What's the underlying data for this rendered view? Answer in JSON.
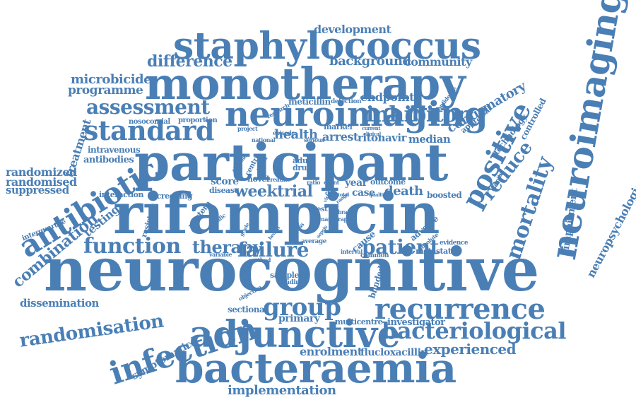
{
  "color": "#4a7fb5",
  "words": [
    {
      "text": "neurocognitive"
    },
    {
      "text": "rifampicin"
    },
    {
      "text": "participant"
    },
    {
      "text": "monotherapy"
    },
    {
      "text": "staphylococcus"
    },
    {
      "text": "bacteraemia"
    },
    {
      "text": "adjunctive"
    },
    {
      "text": "neuroimaging"
    },
    {
      "text": "infection"
    },
    {
      "text": "recurrence"
    },
    {
      "text": "placebo"
    },
    {
      "text": "antibiotic"
    },
    {
      "text": "bacteriological"
    },
    {
      "text": "standard"
    },
    {
      "text": "mortality"
    },
    {
      "text": "positive"
    },
    {
      "text": "assessment"
    },
    {
      "text": "function"
    },
    {
      "text": "randomisation"
    },
    {
      "text": "group"
    },
    {
      "text": "inhibitor"
    },
    {
      "text": "combination"
    },
    {
      "text": "failure"
    },
    {
      "text": "patient"
    },
    {
      "text": "therapy"
    },
    {
      "text": "weektrial"
    },
    {
      "text": "reduce"
    },
    {
      "text": "experienced"
    },
    {
      "text": "difference"
    },
    {
      "text": "background"
    },
    {
      "text": "community"
    },
    {
      "text": "development"
    },
    {
      "text": "confirmatory"
    },
    {
      "text": "microbicide"
    },
    {
      "text": "programme"
    },
    {
      "text": "treatment"
    },
    {
      "text": "randomized"
    },
    {
      "text": "randomised"
    },
    {
      "text": "suppressed"
    },
    {
      "text": "implementation"
    },
    {
      "text": "enrolment"
    },
    {
      "text": "flucloxacillin"
    },
    {
      "text": "dissemination"
    },
    {
      "text": "symptomatic"
    },
    {
      "text": "neuropsychological"
    },
    {
      "text": "impairment"
    },
    {
      "text": "endpoint"
    },
    {
      "text": "health"
    },
    {
      "text": "arrest"
    },
    {
      "text": "ritonavir"
    },
    {
      "text": "median"
    },
    {
      "text": "death"
    },
    {
      "text": "year"
    },
    {
      "text": "case"
    },
    {
      "text": "score"
    },
    {
      "text": "testing"
    },
    {
      "text": "primary"
    },
    {
      "text": "sectional"
    },
    {
      "text": "investigator"
    },
    {
      "text": "multicentre"
    },
    {
      "text": "antibodies"
    },
    {
      "text": "intravenous"
    },
    {
      "text": "meticillin"
    },
    {
      "text": "technology"
    },
    {
      "text": "controlled"
    },
    {
      "text": "appraisal"
    },
    {
      "text": "boosted"
    },
    {
      "text": "adverse"
    },
    {
      "text": "metastatic"
    },
    {
      "text": "outcome"
    },
    {
      "text": "interaction"
    },
    {
      "text": "screening"
    },
    {
      "text": "nosocomial"
    },
    {
      "text": "proportion"
    },
    {
      "text": "resistant"
    },
    {
      "text": "interquartile"
    },
    {
      "text": "blinded"
    },
    {
      "text": "western"
    },
    {
      "text": "marker"
    },
    {
      "text": "disease"
    },
    {
      "text": "novel"
    },
    {
      "text": "adult"
    },
    {
      "text": "drug"
    },
    {
      "text": "sample"
    },
    {
      "text": "funding"
    },
    {
      "text": "evidence"
    },
    {
      "text": "absolute"
    },
    {
      "text": "hospital"
    },
    {
      "text": "detection"
    },
    {
      "text": "research"
    },
    {
      "text": "confidence"
    },
    {
      "text": "episode"
    },
    {
      "text": "national"
    },
    {
      "text": "serious"
    },
    {
      "text": "project"
    },
    {
      "text": "creatine"
    },
    {
      "text": "ratio"
    },
    {
      "text": "event"
    },
    {
      "text": "day"
    },
    {
      "text": "cause"
    },
    {
      "text": "interval"
    },
    {
      "text": "common"
    },
    {
      "text": "average"
    },
    {
      "text": "test"
    },
    {
      "text": "risk"
    },
    {
      "text": "brain"
    },
    {
      "text": "rapid"
    },
    {
      "text": "total"
    },
    {
      "text": "woman"
    },
    {
      "text": "current"
    },
    {
      "text": "clinical"
    },
    {
      "text": "quality"
    },
    {
      "text": "variable"
    },
    {
      "text": "method"
    },
    {
      "text": "objective"
    },
    {
      "text": "specific"
    },
    {
      "text": "eligible"
    },
    {
      "text": "centre"
    },
    {
      "text": "blood"
    },
    {
      "text": "cross"
    },
    {
      "text": "sepsis"
    },
    {
      "text": "range"
    },
    {
      "text": "health"
    },
    {
      "text": "virus"
    },
    {
      "text": "grade"
    }
  ]
}
